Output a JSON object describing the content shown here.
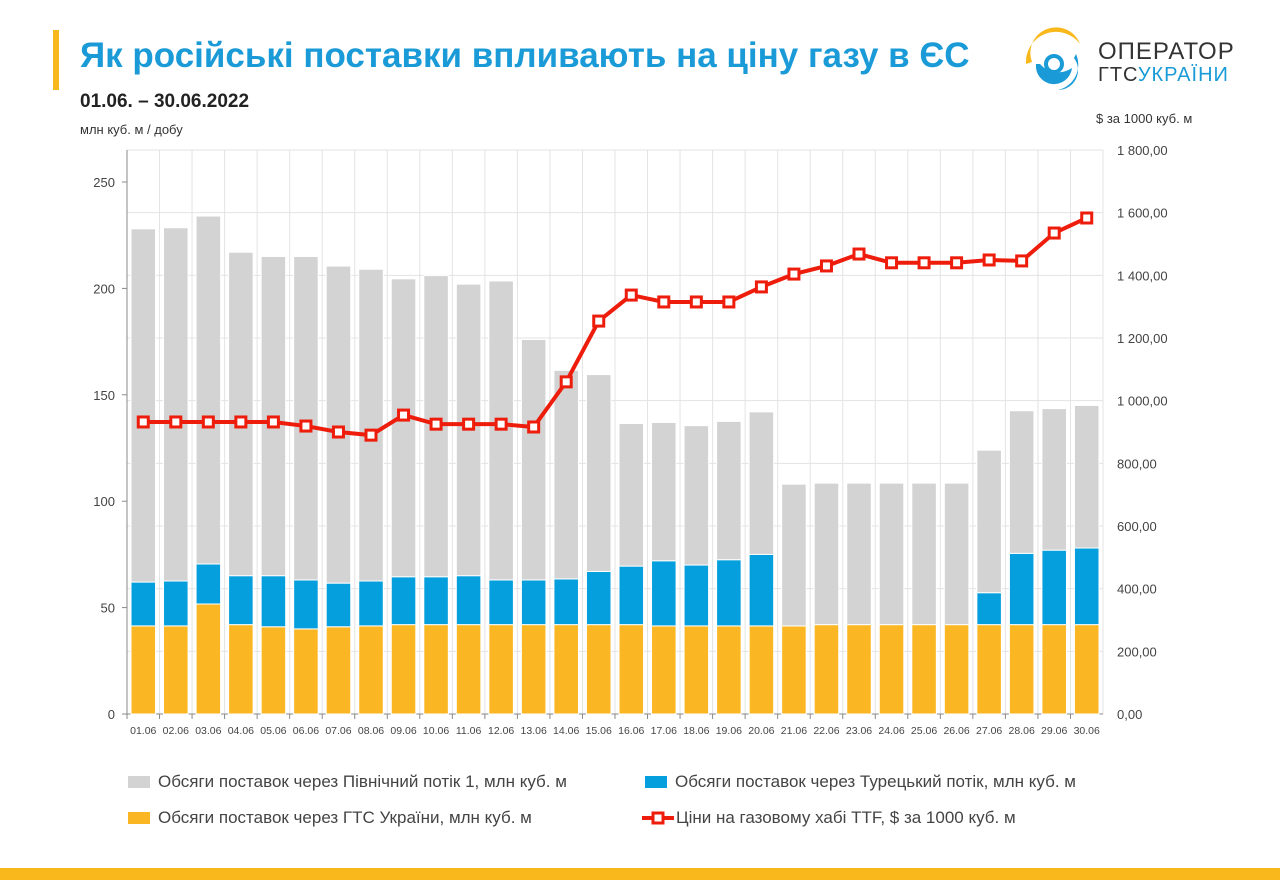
{
  "header": {
    "title": "Як російські поставки впливають на ціну газу в ЄС",
    "date_range": "01.06. – 30.06.2022",
    "unit_left": "млн куб. м / добу",
    "unit_right": "$ за 1000 куб. м"
  },
  "logo": {
    "line1": "ОПЕРАТОР",
    "line2a": "ГТС",
    "line2b": "УКРАЇНИ"
  },
  "colors": {
    "nord": "#d3d3d3",
    "turk": "#049fdc",
    "ukr": "#fbb624",
    "price": "#ee1c0b",
    "title": "#1a9bd7"
  },
  "chart_data": {
    "type": "bar",
    "stacked": true,
    "categories": [
      "01.06",
      "02.06",
      "03.06",
      "04.06",
      "05.06",
      "06.06",
      "07.06",
      "08.06",
      "09.06",
      "10.06",
      "11.06",
      "12.06",
      "13.06",
      "14.06",
      "15.06",
      "16.06",
      "17.06",
      "18.06",
      "19.06",
      "20.06",
      "21.06",
      "22.06",
      "23.06",
      "24.06",
      "25.06",
      "26.06",
      "27.06",
      "28.06",
      "29.06",
      "30.06"
    ],
    "series": [
      {
        "name": "Обсяги поставок через ГТС України, млн куб. м",
        "axis": "left",
        "type": "bar",
        "values": [
          41.4,
          41.4,
          51.7,
          42,
          41,
          40,
          41,
          41.4,
          42,
          42,
          42,
          42,
          42,
          42,
          42,
          42,
          41.4,
          41.4,
          41.4,
          41.4,
          41.4,
          42,
          42,
          42,
          42,
          42,
          42,
          42,
          42,
          42
        ]
      },
      {
        "name": "Обсяги поставок через Турецький потік, млн куб. м",
        "axis": "left",
        "type": "bar",
        "values": [
          20.6,
          21.1,
          18.8,
          23,
          24,
          23,
          20.5,
          21.1,
          22.5,
          22.5,
          23,
          21,
          21,
          21.5,
          25,
          27.5,
          30.6,
          28.6,
          31.1,
          33.6,
          0,
          0,
          0,
          0,
          0,
          0,
          15,
          33.5,
          35,
          36
        ]
      },
      {
        "name": "Обсяги поставок через Північний потік 1, млн куб. м",
        "axis": "left",
        "type": "bar",
        "values": [
          166,
          166,
          163.5,
          152,
          150,
          152,
          149,
          146.5,
          140,
          141.5,
          137,
          140.5,
          113,
          98,
          92.5,
          67,
          65,
          65.5,
          65,
          67,
          66.6,
          66.5,
          66.5,
          66.5,
          66.5,
          66.5,
          67,
          67,
          66.5,
          67
        ]
      },
      {
        "name": "Ціни на газовому хабі TTF, $ за 1000 куб. м",
        "axis": "right",
        "type": "line",
        "values": [
          932,
          932,
          932,
          932,
          932,
          919,
          900,
          890,
          954,
          925,
          925,
          925,
          916,
          1060,
          1254,
          1337,
          1315,
          1315,
          1315,
          1363,
          1404,
          1430,
          1468,
          1440,
          1440,
          1440,
          1449,
          1446,
          1535,
          1583
        ]
      }
    ],
    "ylim_left": [
      0,
      250
    ],
    "yticks_left": [
      "0",
      "50",
      "100",
      "150",
      "200",
      "250"
    ],
    "ylim_right": [
      0,
      1800
    ],
    "yticks_right": [
      "0,00",
      "200,00",
      "400,00",
      "600,00",
      "800,00",
      "1 000,00",
      "1 200,00",
      "1 400,00",
      "1 600,00",
      "1 800,00"
    ],
    "legend_placement": "bottom"
  }
}
